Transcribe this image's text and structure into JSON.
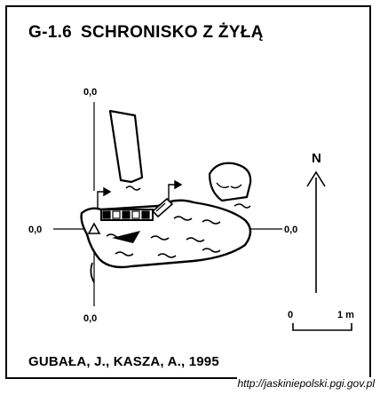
{
  "title": {
    "code": "G-1.6",
    "name": "SCHRONISKO Z ŻYŁĄ"
  },
  "grid_labels": {
    "top": "0,0",
    "left": "0,0",
    "right": "0,0",
    "bottom": "0,0"
  },
  "north_arrow": {
    "label": "N"
  },
  "scale_bar": {
    "start_label": "0",
    "end_label": "1 m"
  },
  "authors": "GUBAŁA, J., KASZA, A., 1995",
  "source_url": "http://jaskiniepolski.pgi.gov.pl",
  "colors": {
    "ink": "#000000",
    "paper": "#ffffff"
  }
}
